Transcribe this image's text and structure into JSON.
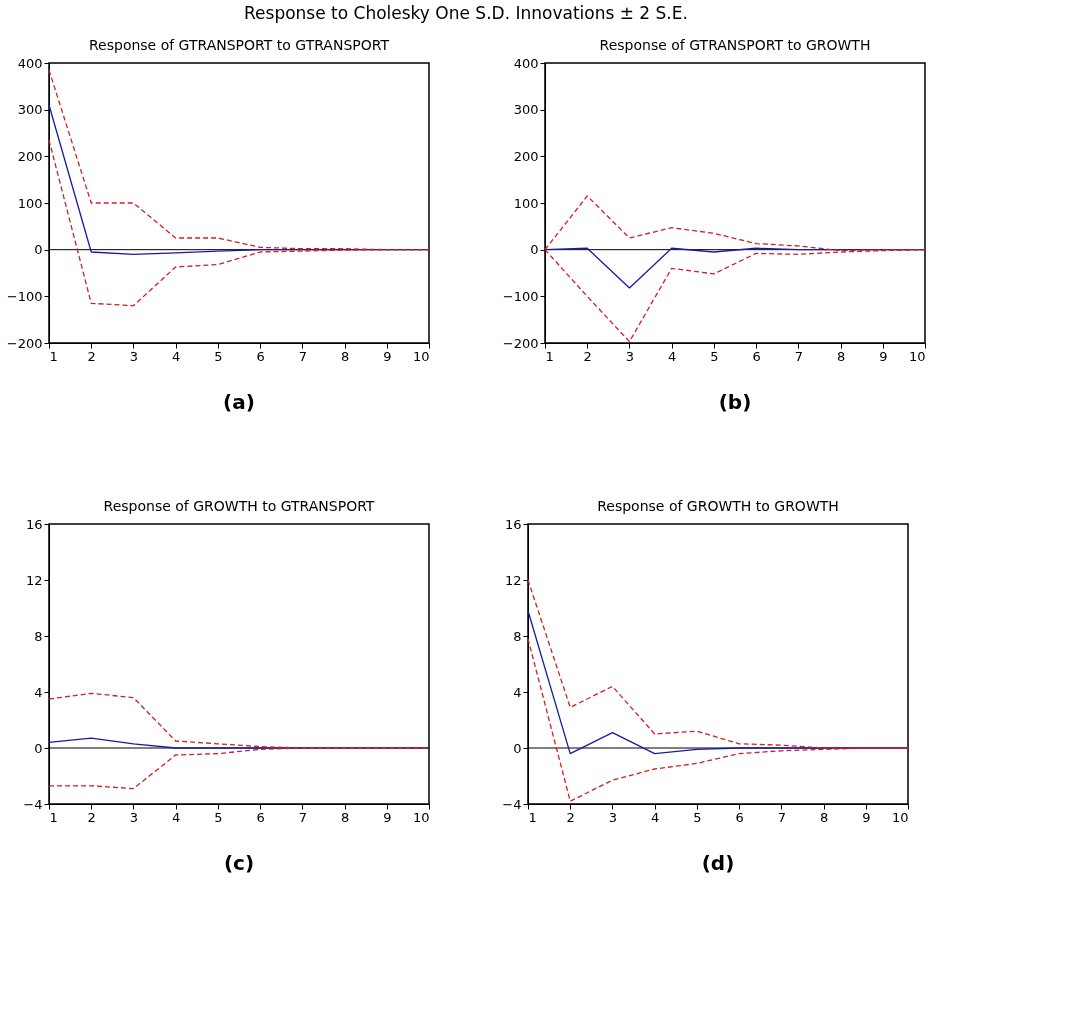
{
  "chart_data": [
    {
      "type": "line",
      "title": "Response of GTRANSPORT to GTRANSPORT",
      "annotations": [
        "Response to Cholesky One S.D. Innovations ± 2 S.E.",
        "(a)"
      ],
      "x": [
        1,
        2,
        3,
        4,
        5,
        6,
        7,
        8,
        9,
        10
      ],
      "xlim": [
        1,
        10
      ],
      "xticks": [
        1,
        2,
        3,
        4,
        5,
        6,
        7,
        8,
        9,
        10
      ],
      "ylim": [
        -200,
        400
      ],
      "yticks": [
        -200,
        -100,
        0,
        100,
        200,
        300,
        400
      ],
      "grid": false,
      "ref_lines": [
        {
          "axis": "y",
          "value": 0,
          "color": "#000000"
        }
      ],
      "series": [
        {
          "color": "#1a1aa0",
          "line_style": "solid",
          "values": [
            310,
            -5,
            -10,
            -7,
            -3,
            0,
            0,
            0,
            0,
            0
          ]
        },
        {
          "color": "#cc2222",
          "line_style": "dashed",
          "values": [
            385,
            100,
            100,
            25,
            25,
            5,
            2,
            2,
            0,
            0
          ]
        },
        {
          "color": "#cc2222",
          "line_style": "dashed",
          "values": [
            235,
            -115,
            -120,
            -37,
            -32,
            -5,
            -3,
            -1,
            0,
            0
          ]
        }
      ]
    },
    {
      "type": "line",
      "title": "Response of GTRANSPORT to GROWTH",
      "annotations": [
        "(b)"
      ],
      "x": [
        1,
        2,
        3,
        4,
        5,
        6,
        7,
        8,
        9,
        10
      ],
      "xlim": [
        1,
        10
      ],
      "xticks": [
        1,
        2,
        3,
        4,
        5,
        6,
        7,
        8,
        9,
        10
      ],
      "ylim": [
        -200,
        400
      ],
      "yticks": [
        -200,
        -100,
        0,
        100,
        200,
        300,
        400
      ],
      "grid": false,
      "ref_lines": [
        {
          "axis": "y",
          "value": 0,
          "color": "#000000"
        }
      ],
      "series": [
        {
          "color": "#1a1aa0",
          "line_style": "solid",
          "values": [
            0,
            3,
            -82,
            3,
            -5,
            3,
            0,
            0,
            0,
            0
          ]
        },
        {
          "color": "#cc2222",
          "line_style": "dashed",
          "values": [
            0,
            115,
            25,
            47,
            35,
            13,
            8,
            -2,
            0,
            0
          ]
        },
        {
          "color": "#cc2222",
          "line_style": "dashed",
          "values": [
            0,
            -100,
            -197,
            -40,
            -52,
            -8,
            -10,
            -5,
            -2,
            0
          ]
        }
      ]
    },
    {
      "type": "line",
      "title": "Response of GROWTH to GTRANSPORT",
      "annotations": [
        "(c)"
      ],
      "x": [
        1,
        2,
        3,
        4,
        5,
        6,
        7,
        8,
        9,
        10
      ],
      "xlim": [
        1,
        10
      ],
      "xticks": [
        1,
        2,
        3,
        4,
        5,
        6,
        7,
        8,
        9,
        10
      ],
      "ylim": [
        -4,
        16
      ],
      "yticks": [
        -4,
        0,
        4,
        8,
        12,
        16
      ],
      "grid": false,
      "ref_lines": [
        {
          "axis": "y",
          "value": 0,
          "color": "#000000"
        }
      ],
      "series": [
        {
          "color": "#1a1aa0",
          "line_style": "solid",
          "values": [
            0.4,
            0.7,
            0.3,
            0,
            0,
            0,
            0,
            0,
            0,
            0
          ]
        },
        {
          "color": "#cc2222",
          "line_style": "dashed",
          "values": [
            3.5,
            3.9,
            3.6,
            0.5,
            0.3,
            0.1,
            0,
            0,
            0,
            0
          ]
        },
        {
          "color": "#cc2222",
          "line_style": "dashed",
          "values": [
            -2.7,
            -2.7,
            -2.9,
            -0.5,
            -0.4,
            -0.1,
            0,
            0,
            0,
            0
          ]
        }
      ]
    },
    {
      "type": "line",
      "title": "Response of GROWTH to GROWTH",
      "annotations": [
        "(d)"
      ],
      "x": [
        1,
        2,
        3,
        4,
        5,
        6,
        7,
        8,
        9,
        10
      ],
      "xlim": [
        1,
        10
      ],
      "xticks": [
        1,
        2,
        3,
        4,
        5,
        6,
        7,
        8,
        9,
        10
      ],
      "ylim": [
        -4,
        16
      ],
      "yticks": [
        -4,
        0,
        4,
        8,
        12,
        16
      ],
      "grid": false,
      "ref_lines": [
        {
          "axis": "y",
          "value": 0,
          "color": "#000000"
        }
      ],
      "series": [
        {
          "color": "#1a1aa0",
          "line_style": "solid",
          "values": [
            9.8,
            -0.4,
            1.1,
            -0.4,
            -0.1,
            0,
            0,
            0,
            0,
            0
          ]
        },
        {
          "color": "#cc2222",
          "line_style": "dashed",
          "values": [
            12,
            2.9,
            4.4,
            1.0,
            1.2,
            0.3,
            0.2,
            0,
            0,
            0
          ]
        },
        {
          "color": "#cc2222",
          "line_style": "dashed",
          "values": [
            7.8,
            -3.8,
            -2.3,
            -1.5,
            -1.1,
            -0.4,
            -0.2,
            -0.1,
            0,
            0
          ]
        }
      ]
    }
  ]
}
